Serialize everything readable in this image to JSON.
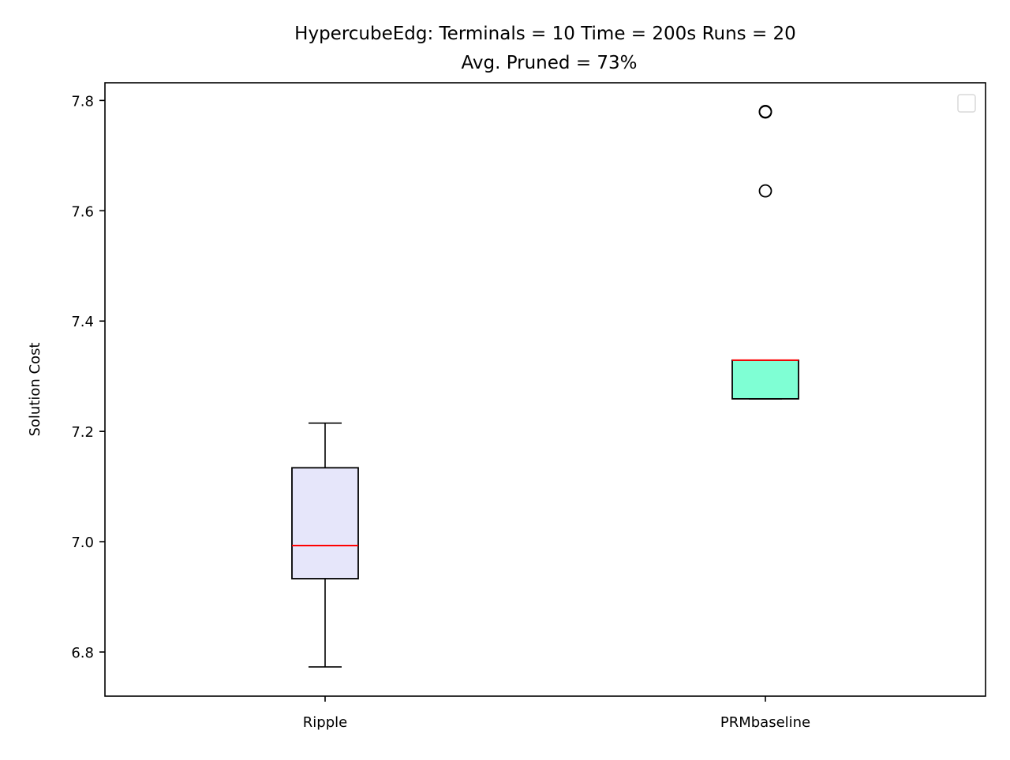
{
  "chart_data": {
    "type": "box",
    "title": "HypercubeEdg:  Terminals = 10  Time = 200s  Runs = 20",
    "subtitle": "Avg. Pruned = 73%",
    "xlabel": "",
    "ylabel": "Solution Cost",
    "ylim": [
      6.72,
      7.832
    ],
    "yticks": [
      6.8,
      7.0,
      7.2,
      7.4,
      7.6,
      7.8
    ],
    "ytick_labels": [
      "6.8",
      "7.0",
      "7.2",
      "7.4",
      "7.6",
      "7.8"
    ],
    "categories": [
      "Ripple",
      "PRMbaseline"
    ],
    "legend": {
      "placement": "upper right",
      "entries": []
    },
    "grid": false,
    "boxes": [
      {
        "name": "Ripple",
        "whisker_low": 6.773,
        "q1": 6.933,
        "median": 6.993,
        "q3": 7.134,
        "whisker_high": 7.215,
        "outliers": [],
        "fill": "#e6e6fa",
        "median_color": "#ff0000"
      },
      {
        "name": "PRMbaseline",
        "whisker_low": 7.259,
        "q1": 7.259,
        "median": 7.329,
        "q3": 7.329,
        "whisker_high": 7.329,
        "outliers": [
          7.636,
          7.779,
          7.78
        ],
        "fill": "#7fffd4",
        "median_color": "#ff0000"
      }
    ]
  }
}
